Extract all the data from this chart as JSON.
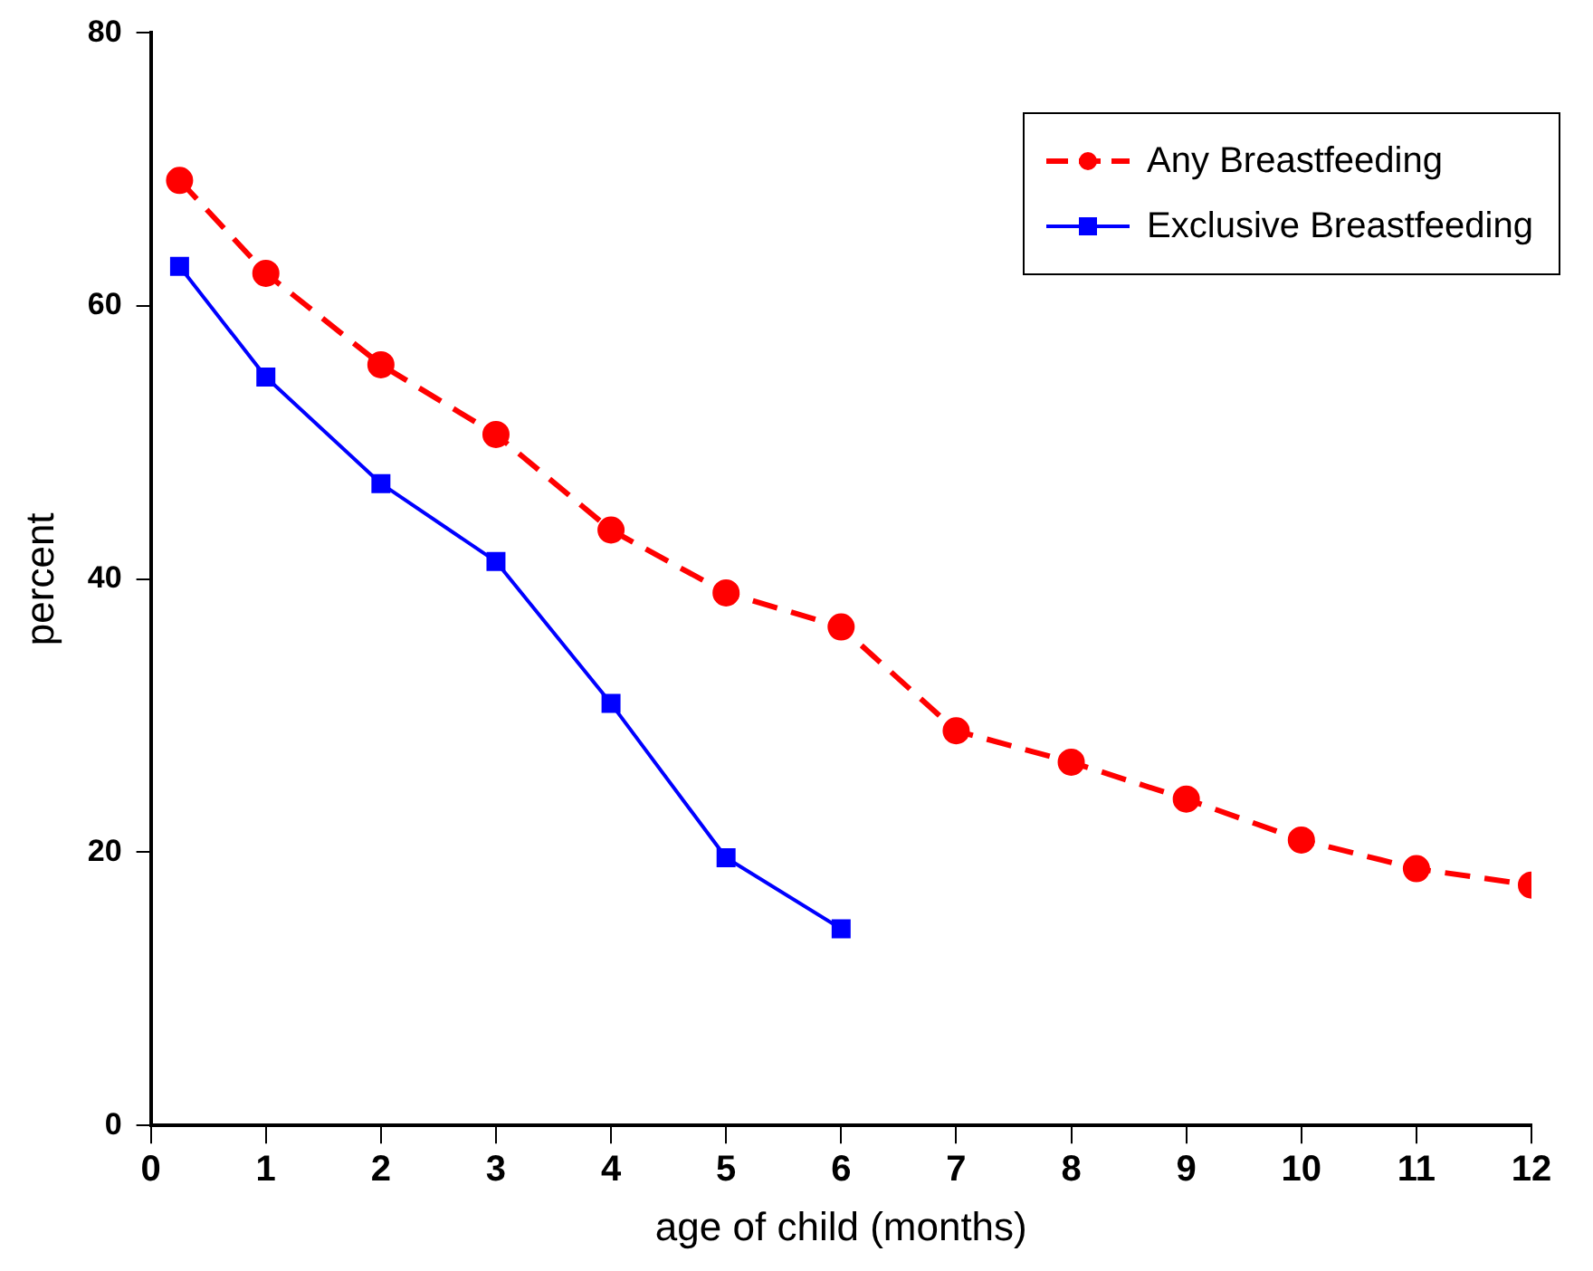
{
  "chart_data": {
    "type": "line",
    "xlabel": "age of child (months)",
    "ylabel": "percent",
    "xlim": [
      0,
      12
    ],
    "xticks": [
      0,
      1,
      2,
      3,
      4,
      5,
      6,
      7,
      8,
      9,
      10,
      11,
      12
    ],
    "ylim": [
      0,
      80
    ],
    "yticks": [
      0,
      20,
      40,
      60,
      80
    ],
    "legend": "top right",
    "grid": false,
    "series": [
      {
        "name": "Any Breastfeeding",
        "color": "#ff0000",
        "marker": "circle",
        "line_style": "dashed",
        "x": [
          0.25,
          1,
          2,
          3,
          4,
          5,
          6,
          7,
          8,
          9,
          10,
          11,
          12
        ],
        "values": [
          69.2,
          62.4,
          55.7,
          50.6,
          43.6,
          39.0,
          36.5,
          28.9,
          26.6,
          23.9,
          20.9,
          18.8,
          17.6
        ]
      },
      {
        "name": "Exclusive Breastfeeding",
        "color": "#0000ff",
        "marker": "square",
        "line_style": "solid",
        "x": [
          0.25,
          1,
          2,
          3,
          4,
          5,
          6
        ],
        "values": [
          62.9,
          54.8,
          47.0,
          41.3,
          30.9,
          19.6,
          14.4
        ]
      }
    ]
  }
}
